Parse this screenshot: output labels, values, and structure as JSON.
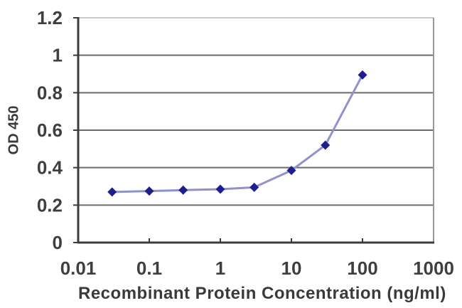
{
  "chart_data": {
    "type": "line",
    "title": "",
    "xlabel": "Recombinant Protein Concentration (ng/ml)",
    "ylabel": "OD 450",
    "x_scale": "log",
    "xlim": [
      0.01,
      1000
    ],
    "ylim": [
      0,
      1.2
    ],
    "grid": true,
    "legend": false,
    "marker": "diamond",
    "x": [
      0.03,
      0.1,
      0.3,
      1,
      3,
      10,
      30,
      100
    ],
    "series": [
      {
        "name": "OD 450",
        "values": [
          0.27,
          0.275,
          0.28,
          0.285,
          0.295,
          0.385,
          0.52,
          0.895
        ]
      }
    ],
    "x_ticks": {
      "values": [
        0.01,
        0.1,
        1,
        10,
        100,
        1000
      ],
      "labels": [
        "0.01",
        "0.1",
        "1",
        "10",
        "100",
        "1000"
      ]
    },
    "y_ticks": {
      "values": [
        0,
        0.2,
        0.4,
        0.6,
        0.8,
        1,
        1.2
      ],
      "labels": [
        "0",
        "0.2",
        "0.4",
        "0.6",
        "0.8",
        "1",
        "1.2"
      ]
    },
    "colors": {
      "line": "#9191cd",
      "marker": "#1e1e8f",
      "gridline": "#6b6b6b",
      "axis": "#3c3c3c",
      "plot_top_border": "#c8c8c8",
      "plot_right_border": "#989898",
      "text": "#3f3f3f",
      "background": "#ffffff"
    }
  }
}
